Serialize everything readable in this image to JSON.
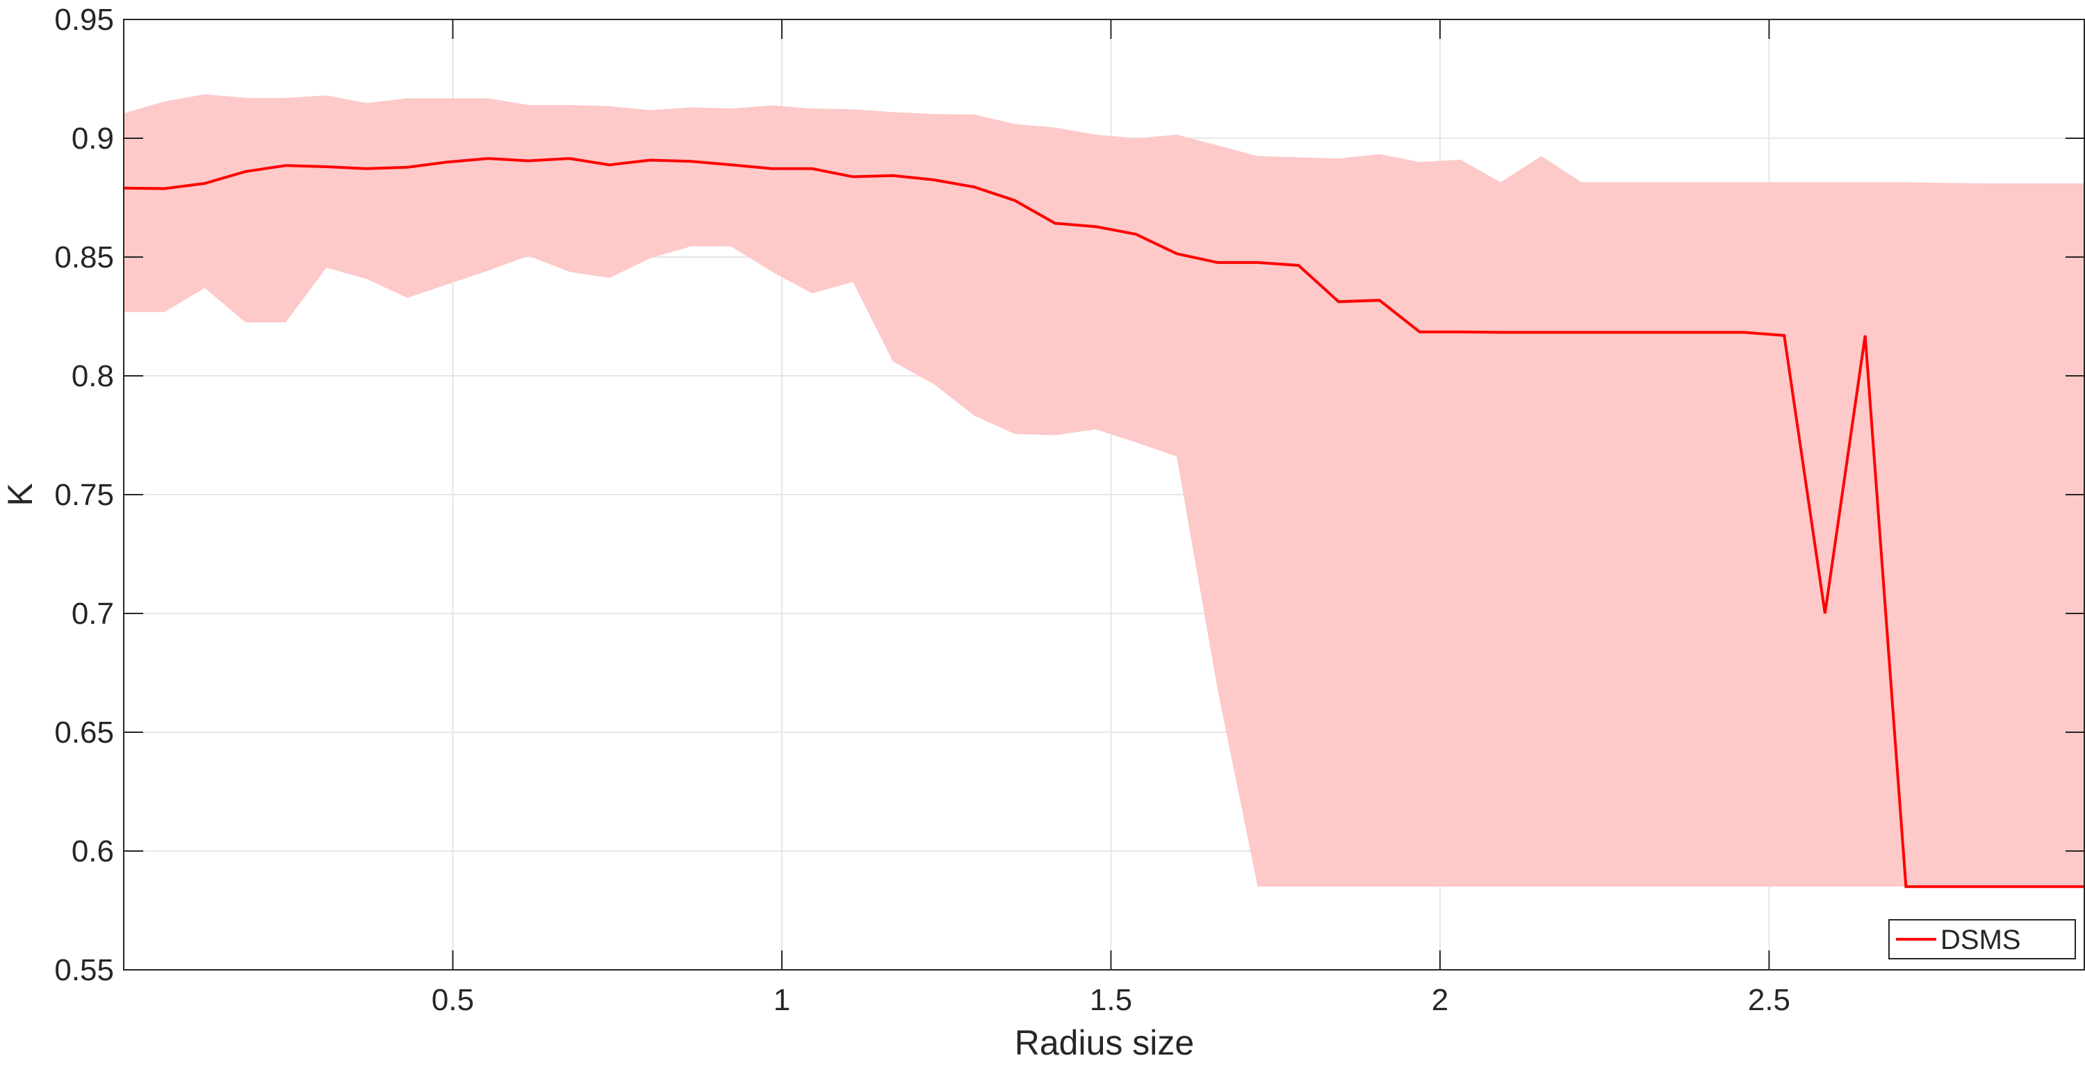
{
  "chart_data": {
    "type": "line",
    "xlabel": "Radius size",
    "ylabel": "K",
    "xlim": [
      0.0,
      2.98
    ],
    "ylim": [
      0.55,
      0.95
    ],
    "xticks": [
      0.5,
      1,
      1.5,
      2,
      2.5
    ],
    "xtick_labels": [
      "0.5",
      "1",
      "1.5",
      "2",
      "2.5"
    ],
    "yticks": [
      0.55,
      0.6,
      0.65,
      0.7,
      0.75,
      0.8,
      0.85,
      0.9,
      0.95
    ],
    "ytick_labels": [
      "0.55",
      "0.6",
      "0.65",
      "0.7",
      "0.75",
      "0.8",
      "0.85",
      "0.9",
      "0.95"
    ],
    "grid": true,
    "legend_position": "bottom-right",
    "series": [
      {
        "name": "DSMS",
        "color": "#ff0000",
        "band_color": "#fdc9c9",
        "x": [
          0.0,
          0.062,
          0.123,
          0.185,
          0.246,
          0.308,
          0.369,
          0.431,
          0.492,
          0.554,
          0.615,
          0.677,
          0.738,
          0.8,
          0.862,
          0.923,
          0.985,
          1.046,
          1.108,
          1.169,
          1.231,
          1.292,
          1.354,
          1.415,
          1.477,
          1.538,
          1.6,
          1.662,
          1.723,
          1.785,
          1.846,
          1.908,
          1.969,
          2.031,
          2.092,
          2.154,
          2.215,
          2.277,
          2.338,
          2.4,
          2.462,
          2.523,
          2.585,
          2.646,
          2.708,
          2.769,
          2.831,
          2.892,
          2.98
        ],
        "y": [
          0.879,
          0.8788,
          0.881,
          0.886,
          0.8885,
          0.888,
          0.8872,
          0.8878,
          0.89,
          0.8915,
          0.8905,
          0.8915,
          0.8888,
          0.8908,
          0.8903,
          0.8888,
          0.8872,
          0.8872,
          0.8838,
          0.8843,
          0.8825,
          0.8795,
          0.8738,
          0.8642,
          0.8628,
          0.8596,
          0.8514,
          0.8477,
          0.8477,
          0.8465,
          0.8312,
          0.8318,
          0.8185,
          0.8185,
          0.8183,
          0.8183,
          0.8183,
          0.8183,
          0.8183,
          0.8183,
          0.8183,
          0.817,
          0.7,
          0.817,
          0.585,
          0.585,
          0.585,
          0.585,
          0.585
        ],
        "upper": [
          0.9105,
          0.9155,
          0.9185,
          0.917,
          0.917,
          0.918,
          0.9148,
          0.9168,
          0.9168,
          0.9168,
          0.914,
          0.914,
          0.9135,
          0.9118,
          0.913,
          0.9125,
          0.9138,
          0.9125,
          0.9122,
          0.911,
          0.9102,
          0.91,
          0.906,
          0.9045,
          0.9015,
          0.9,
          0.9015,
          0.897,
          0.8925,
          0.892,
          0.8915,
          0.8933,
          0.89,
          0.891,
          0.8815,
          0.8925,
          0.8815,
          0.8815,
          0.8815,
          0.8815,
          0.8815,
          0.8815,
          0.8815,
          0.8815,
          0.8815,
          0.8812,
          0.881,
          0.881,
          0.881
        ],
        "lower": [
          0.8268,
          0.8268,
          0.837,
          0.8225,
          0.8225,
          0.8455,
          0.8408,
          0.8328,
          0.8385,
          0.8443,
          0.8505,
          0.8438,
          0.8412,
          0.8495,
          0.8545,
          0.8545,
          0.8438,
          0.8347,
          0.8395,
          0.806,
          0.7965,
          0.7833,
          0.7755,
          0.775,
          0.7775,
          0.772,
          0.766,
          0.668,
          0.585,
          0.585,
          0.585,
          0.585,
          0.585,
          0.585,
          0.585,
          0.585,
          0.585,
          0.585,
          0.585,
          0.585,
          0.585,
          0.585,
          0.585,
          0.585,
          0.585,
          0.585,
          0.585,
          0.585,
          0.585
        ]
      }
    ]
  }
}
